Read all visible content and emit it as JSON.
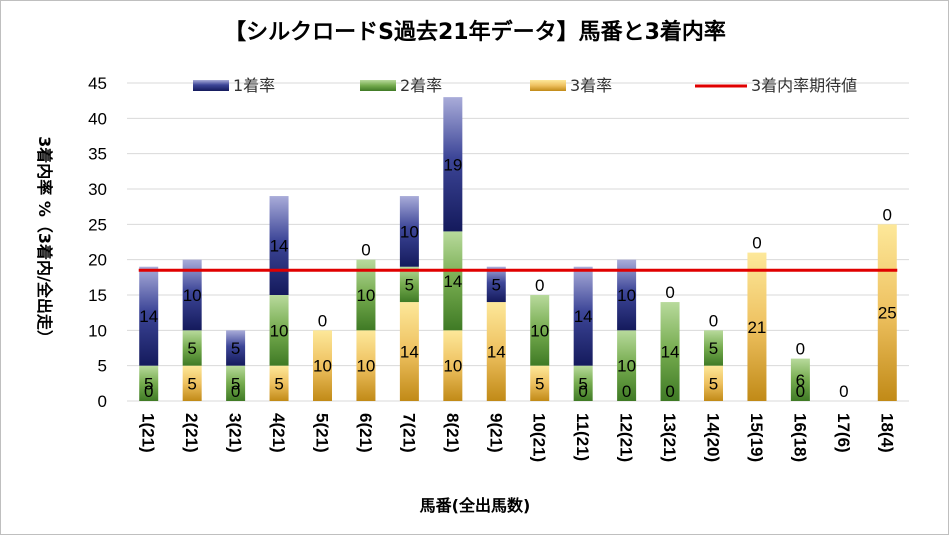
{
  "chart_data": {
    "type": "bar",
    "stacked": true,
    "title": "【シルクロードS過去21年データ】馬番と3着内率",
    "xlabel": "馬番(全出馬数)",
    "ylabel": "3着内率 %（3着内/全出走）",
    "ylim": [
      0,
      45
    ],
    "yticks": [
      0,
      5,
      10,
      15,
      20,
      25,
      30,
      35,
      40,
      45
    ],
    "grid": true,
    "legend_position": "top",
    "categories": [
      "1(21)",
      "2(21)",
      "3(21)",
      "4(21)",
      "5(21)",
      "6(21)",
      "7(21)",
      "8(21)",
      "9(21)",
      "10(21)",
      "11(21)",
      "12(21)",
      "13(21)",
      "14(20)",
      "15(19)",
      "16(18)",
      "17(6)",
      "18(4)"
    ],
    "series": [
      {
        "name": "3着率",
        "color": "#e6b53d",
        "values": [
          0,
          5,
          0,
          5,
          10,
          10,
          14,
          10,
          14,
          5,
          0,
          0,
          0,
          5,
          21,
          0,
          0,
          25
        ],
        "labels": [
          "0",
          "5",
          "0",
          "5",
          "10",
          "10",
          "14",
          "10",
          "14",
          "5",
          "0",
          "0",
          "0",
          "5",
          "21",
          "0",
          "0",
          "25"
        ]
      },
      {
        "name": "2着率",
        "color": "#6ea34a",
        "values": [
          5,
          5,
          5,
          10,
          0,
          10,
          5,
          14,
          0,
          10,
          5,
          10,
          14,
          5,
          0,
          6,
          0,
          0
        ],
        "labels": [
          "5",
          "5",
          "5",
          "10",
          "0",
          "10",
          "5",
          "14",
          "0",
          "10",
          "5",
          "10",
          "14",
          "5",
          "0",
          "6",
          "0",
          "0"
        ]
      },
      {
        "name": "1着率",
        "color": "#3a4291",
        "values": [
          14,
          10,
          5,
          14,
          0,
          0,
          10,
          19,
          5,
          0,
          14,
          10,
          0,
          0,
          0,
          0,
          0,
          0
        ],
        "labels": [
          "14",
          "10",
          "5",
          "14",
          "0",
          "0",
          "10",
          "19",
          "5",
          "0",
          "14",
          "10",
          "0",
          "0",
          "0",
          "0",
          "0",
          "0"
        ]
      }
    ],
    "reference_line": {
      "name": "3着内率期待値",
      "value": 18.5,
      "color": "#e00000"
    },
    "legend": [
      "1着率",
      "2着率",
      "3着率",
      "3着内率期待値"
    ],
    "category_labels_shown": [
      [
        {
          "series": 0,
          "text": "0"
        },
        {
          "series": 1,
          "text": "5"
        },
        {
          "series": 2,
          "text": "14"
        }
      ],
      [
        {
          "series": 0,
          "text": "5"
        },
        {
          "series": 1,
          "text": "5"
        },
        {
          "series": 2,
          "text": "10"
        }
      ],
      [
        {
          "series": 0,
          "text": "0"
        },
        {
          "series": 1,
          "text": "5"
        },
        {
          "series": 2,
          "text": "5"
        }
      ],
      [
        {
          "series": 0,
          "text": "5"
        },
        {
          "series": 1,
          "text": "10"
        },
        {
          "series": 2,
          "text": "14"
        }
      ],
      [
        {
          "series": 0,
          "text": "10"
        },
        {
          "series": 1,
          "text": "0"
        }
      ],
      [
        {
          "series": 0,
          "text": "10"
        },
        {
          "series": 1,
          "text": "10"
        },
        {
          "series": 2,
          "text": "0"
        }
      ],
      [
        {
          "series": 0,
          "text": "14"
        },
        {
          "series": 1,
          "text": "5"
        },
        {
          "series": 2,
          "text": "10"
        }
      ],
      [
        {
          "series": 0,
          "text": "10"
        },
        {
          "series": 1,
          "text": "14"
        },
        {
          "series": 2,
          "text": "19"
        }
      ],
      [
        {
          "series": 0,
          "text": "14"
        },
        {
          "series": 2,
          "text": "5"
        }
      ],
      [
        {
          "series": 0,
          "text": "5"
        },
        {
          "series": 1,
          "text": "10"
        },
        {
          "series": 2,
          "text": "0"
        }
      ],
      [
        {
          "series": 0,
          "text": "0"
        },
        {
          "series": 1,
          "text": "5"
        },
        {
          "series": 2,
          "text": "14"
        }
      ],
      [
        {
          "series": 0,
          "text": "0"
        },
        {
          "series": 1,
          "text": "10"
        },
        {
          "series": 2,
          "text": "10"
        }
      ],
      [
        {
          "series": 0,
          "text": "0"
        },
        {
          "series": 1,
          "text": "14"
        },
        {
          "series": 2,
          "text": "0"
        }
      ],
      [
        {
          "series": 0,
          "text": "5"
        },
        {
          "series": 1,
          "text": "5"
        },
        {
          "series": 2,
          "text": "0"
        }
      ],
      [
        {
          "series": 0,
          "text": "21"
        },
        {
          "series": 1,
          "text": "0"
        }
      ],
      [
        {
          "series": 0,
          "text": "0"
        },
        {
          "series": 1,
          "text": "6"
        },
        {
          "series": 2,
          "text": "0"
        }
      ],
      [
        {
          "series": 0,
          "text": "0"
        }
      ],
      [
        {
          "series": 0,
          "text": "25"
        },
        {
          "series": 1,
          "text": "0"
        }
      ]
    ]
  }
}
